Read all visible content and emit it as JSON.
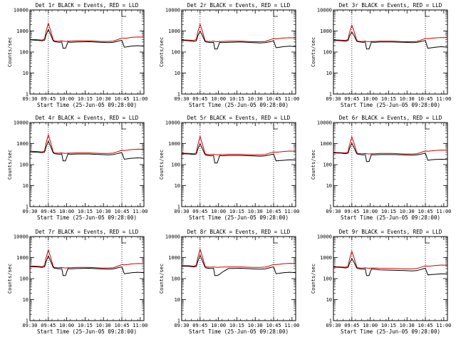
{
  "figure": {
    "colors": {
      "events": "#000000",
      "lld": "#d40000",
      "axis": "#000000",
      "background": "#ffffff"
    }
  },
  "chart_data": [
    {
      "type": "line",
      "title": "Det 1r BLACK = Events, RED = LLD",
      "xlabel": "Start Time (25-Jun-05 09:28:00)",
      "ylabel": "Counts/sec",
      "x_ticks": [
        "09:30",
        "09:45",
        "10:00",
        "10:15",
        "10:30",
        "10:45",
        "11:00"
      ],
      "y_ticks": [
        "1",
        "10",
        "100",
        "1000",
        "10000"
      ],
      "xlim": [
        2,
        95
      ],
      "ylim": [
        1,
        10000
      ],
      "yscale": "log",
      "vlines": [
        17,
        77
      ],
      "x": [
        2,
        8,
        12,
        14,
        15,
        17,
        19,
        21,
        22,
        24,
        26,
        28,
        29,
        31,
        33,
        35,
        40,
        50,
        60,
        66,
        70,
        73,
        75,
        77,
        79,
        82,
        85,
        90,
        95
      ],
      "series": [
        {
          "name": "Events",
          "color": "#000000",
          "values": [
            380,
            360,
            340,
            360,
            600,
            1200,
            650,
            340,
            310,
            300,
            290,
            300,
            150,
            150,
            300,
            290,
            300,
            310,
            290,
            280,
            290,
            320,
            340,
            360,
            170,
            180,
            190,
            200,
            190
          ]
        },
        {
          "name": "LLD",
          "color": "#d40000",
          "values": [
            400,
            390,
            370,
            420,
            900,
            2300,
            1000,
            380,
            340,
            330,
            330,
            340,
            330,
            320,
            330,
            330,
            340,
            340,
            320,
            320,
            330,
            380,
            420,
            460,
            450,
            470,
            500,
            520,
            510
          ]
        }
      ]
    },
    {
      "type": "line",
      "title": "Det 2r BLACK = Events, RED = LLD",
      "xlabel": "Start Time (25-Jun-05 09:28:00)",
      "ylabel": "Counts/sec",
      "x_ticks": [
        "09:30",
        "09:45",
        "10:00",
        "10:15",
        "10:30",
        "10:45",
        "11:00"
      ],
      "y_ticks": [
        "1",
        "10",
        "100",
        "1000",
        "10000"
      ],
      "xlim": [
        2,
        95
      ],
      "ylim": [
        1,
        10000
      ],
      "yscale": "log",
      "vlines": [
        17,
        77
      ],
      "x": [
        2,
        8,
        12,
        14,
        15,
        17,
        19,
        21,
        22,
        24,
        26,
        28,
        29,
        31,
        33,
        35,
        40,
        50,
        60,
        66,
        70,
        73,
        75,
        77,
        79,
        82,
        85,
        90,
        95
      ],
      "series": [
        {
          "name": "Events",
          "color": "#000000",
          "values": [
            360,
            340,
            320,
            340,
            560,
            1000,
            600,
            320,
            300,
            290,
            280,
            290,
            140,
            140,
            290,
            280,
            290,
            300,
            280,
            270,
            280,
            300,
            320,
            340,
            160,
            170,
            180,
            190,
            180
          ]
        },
        {
          "name": "LLD",
          "color": "#d40000",
          "values": [
            380,
            370,
            360,
            400,
            850,
            2100,
            950,
            360,
            330,
            320,
            320,
            330,
            320,
            310,
            320,
            320,
            330,
            330,
            310,
            310,
            320,
            360,
            400,
            430,
            420,
            440,
            460,
            480,
            470
          ]
        }
      ]
    },
    {
      "type": "line",
      "title": "Det 3r BLACK = Events, RED = LLD",
      "xlabel": "Start Time (25-Jun-05 09:28:00)",
      "ylabel": "Counts/sec",
      "x_ticks": [
        "09:30",
        "09:45",
        "10:00",
        "10:15",
        "10:30",
        "10:45",
        "11:00"
      ],
      "y_ticks": [
        "1",
        "10",
        "100",
        "1000",
        "10000"
      ],
      "xlim": [
        2,
        95
      ],
      "ylim": [
        1,
        10000
      ],
      "yscale": "log",
      "vlines": [
        17,
        77
      ],
      "x": [
        2,
        8,
        12,
        14,
        15,
        17,
        19,
        21,
        22,
        24,
        26,
        28,
        29,
        31,
        33,
        35,
        40,
        50,
        60,
        66,
        70,
        73,
        75,
        77,
        79,
        82,
        85,
        90,
        95
      ],
      "series": [
        {
          "name": "Events",
          "color": "#000000",
          "values": [
            360,
            340,
            330,
            350,
            560,
            900,
            580,
            330,
            310,
            300,
            290,
            300,
            140,
            140,
            300,
            290,
            300,
            300,
            290,
            280,
            290,
            310,
            330,
            350,
            150,
            160,
            170,
            180,
            170
          ]
        },
        {
          "name": "LLD",
          "color": "#d40000",
          "values": [
            380,
            370,
            360,
            400,
            800,
            1900,
            900,
            360,
            330,
            320,
            320,
            330,
            320,
            310,
            320,
            320,
            330,
            330,
            310,
            310,
            320,
            360,
            400,
            440,
            430,
            450,
            470,
            490,
            480
          ]
        }
      ]
    },
    {
      "type": "line",
      "title": "Det 4r BLACK = Events, RED = LLD",
      "xlabel": "Start Time (25-Jun-05 09:28:00)",
      "ylabel": "Counts/sec",
      "x_ticks": [
        "09:30",
        "09:45",
        "10:00",
        "10:15",
        "10:30",
        "10:45",
        "11:00"
      ],
      "y_ticks": [
        "1",
        "10",
        "100",
        "1000",
        "10000"
      ],
      "xlim": [
        2,
        95
      ],
      "ylim": [
        1,
        10000
      ],
      "yscale": "log",
      "vlines": [
        17,
        77
      ],
      "x": [
        2,
        8,
        12,
        14,
        15,
        17,
        19,
        21,
        22,
        24,
        26,
        28,
        29,
        31,
        33,
        35,
        40,
        50,
        60,
        66,
        70,
        73,
        75,
        77,
        79,
        82,
        85,
        90,
        95
      ],
      "series": [
        {
          "name": "Events",
          "color": "#000000",
          "values": [
            400,
            390,
            370,
            390,
            650,
            1300,
            700,
            360,
            330,
            320,
            310,
            320,
            150,
            150,
            320,
            310,
            320,
            320,
            300,
            290,
            300,
            330,
            350,
            370,
            180,
            190,
            200,
            210,
            200
          ]
        },
        {
          "name": "LLD",
          "color": "#d40000",
          "values": [
            430,
            420,
            400,
            450,
            1000,
            2600,
            1100,
            400,
            360,
            350,
            350,
            360,
            350,
            340,
            350,
            350,
            360,
            360,
            340,
            340,
            350,
            400,
            440,
            480,
            470,
            490,
            520,
            540,
            530
          ]
        }
      ]
    },
    {
      "type": "line",
      "title": "Det 5r BLACK = Events, RED = LLD",
      "xlabel": "Start Time (25-Jun-05 09:28:00)",
      "ylabel": "Counts/sec",
      "x_ticks": [
        "09:30",
        "09:45",
        "10:00",
        "10:15",
        "10:30",
        "10:45",
        "11:00"
      ],
      "y_ticks": [
        "1",
        "10",
        "100",
        "1000",
        "10000"
      ],
      "xlim": [
        2,
        95
      ],
      "ylim": [
        1,
        10000
      ],
      "yscale": "log",
      "vlines": [
        17,
        77
      ],
      "x": [
        2,
        8,
        12,
        14,
        15,
        17,
        19,
        21,
        22,
        24,
        26,
        28,
        29,
        31,
        33,
        35,
        40,
        50,
        60,
        66,
        70,
        73,
        75,
        77,
        79,
        82,
        85,
        90,
        95
      ],
      "series": [
        {
          "name": "Events",
          "color": "#000000",
          "values": [
            330,
            320,
            300,
            320,
            520,
            1000,
            560,
            300,
            280,
            270,
            260,
            270,
            120,
            120,
            270,
            260,
            270,
            270,
            260,
            250,
            260,
            280,
            300,
            320,
            150,
            155,
            160,
            170,
            165
          ]
        },
        {
          "name": "LLD",
          "color": "#d40000",
          "values": [
            350,
            340,
            330,
            370,
            800,
            2200,
            900,
            340,
            310,
            300,
            300,
            310,
            300,
            290,
            300,
            300,
            310,
            310,
            290,
            290,
            300,
            340,
            370,
            400,
            390,
            400,
            420,
            440,
            430
          ]
        }
      ]
    },
    {
      "type": "line",
      "title": "Det 6r BLACK = Events, RED = LLD",
      "xlabel": "Start Time (25-Jun-05 09:28:00)",
      "ylabel": "Counts/sec",
      "x_ticks": [
        "09:30",
        "09:45",
        "10:00",
        "10:15",
        "10:30",
        "10:45",
        "11:00"
      ],
      "y_ticks": [
        "1",
        "10",
        "100",
        "1000",
        "10000"
      ],
      "xlim": [
        2,
        95
      ],
      "ylim": [
        1,
        10000
      ],
      "yscale": "log",
      "vlines": [
        17,
        77
      ],
      "x": [
        2,
        8,
        12,
        14,
        15,
        17,
        19,
        21,
        22,
        24,
        26,
        28,
        29,
        31,
        33,
        35,
        40,
        50,
        60,
        66,
        70,
        73,
        75,
        77,
        79,
        82,
        85,
        90,
        95
      ],
      "series": [
        {
          "name": "Events",
          "color": "#000000",
          "values": [
            360,
            350,
            330,
            350,
            560,
            1050,
            600,
            330,
            310,
            300,
            290,
            300,
            140,
            140,
            300,
            290,
            300,
            300,
            290,
            280,
            290,
            310,
            330,
            350,
            160,
            170,
            175,
            180,
            175
          ]
        },
        {
          "name": "LLD",
          "color": "#d40000",
          "values": [
            380,
            370,
            360,
            400,
            850,
            2100,
            950,
            370,
            340,
            330,
            330,
            340,
            330,
            320,
            330,
            330,
            340,
            340,
            320,
            320,
            330,
            370,
            410,
            440,
            430,
            450,
            470,
            490,
            480
          ]
        }
      ]
    },
    {
      "type": "line",
      "title": "Det 7r BLACK = Events, RED = LLD",
      "xlabel": "Start Time (25-Jun-05 09:28:00)",
      "ylabel": "Counts/sec",
      "x_ticks": [
        "09:30",
        "09:45",
        "10:00",
        "10:15",
        "10:30",
        "10:45",
        "11:00"
      ],
      "y_ticks": [
        "1",
        "10",
        "100",
        "1000",
        "10000"
      ],
      "xlim": [
        2,
        95
      ],
      "ylim": [
        1,
        10000
      ],
      "yscale": "log",
      "vlines": [
        17,
        77
      ],
      "x": [
        2,
        8,
        12,
        14,
        15,
        17,
        19,
        21,
        22,
        24,
        26,
        28,
        29,
        31,
        33,
        35,
        40,
        50,
        60,
        66,
        70,
        73,
        75,
        77,
        79,
        82,
        85,
        90,
        95
      ],
      "series": [
        {
          "name": "Events",
          "color": "#000000",
          "values": [
            370,
            360,
            340,
            360,
            600,
            1200,
            650,
            340,
            310,
            300,
            290,
            300,
            140,
            140,
            300,
            290,
            300,
            310,
            290,
            280,
            290,
            320,
            340,
            360,
            170,
            180,
            190,
            200,
            190
          ]
        },
        {
          "name": "LLD",
          "color": "#d40000",
          "values": [
            400,
            390,
            370,
            420,
            900,
            2300,
            1000,
            380,
            340,
            330,
            330,
            340,
            330,
            320,
            330,
            330,
            340,
            340,
            320,
            320,
            330,
            380,
            420,
            460,
            450,
            470,
            500,
            520,
            510
          ]
        }
      ]
    },
    {
      "type": "line",
      "title": "Det 8r BLACK = Events, RED = LLD",
      "xlabel": "Start Time (25-Jun-05 09:28:00)",
      "ylabel": "Counts/sec",
      "x_ticks": [
        "09:30",
        "09:45",
        "10:00",
        "10:15",
        "10:30",
        "10:45",
        "11:00"
      ],
      "y_ticks": [
        "1",
        "10",
        "100",
        "1000",
        "10000"
      ],
      "xlim": [
        2,
        95
      ],
      "ylim": [
        1,
        10000
      ],
      "yscale": "log",
      "vlines": [
        17,
        77
      ],
      "x": [
        2,
        8,
        12,
        14,
        15,
        17,
        19,
        21,
        22,
        24,
        26,
        28,
        29,
        31,
        33,
        35,
        40,
        50,
        60,
        66,
        70,
        73,
        75,
        77,
        79,
        82,
        85,
        90,
        95
      ],
      "series": [
        {
          "name": "Events",
          "color": "#000000",
          "values": [
            390,
            380,
            360,
            380,
            620,
            1300,
            680,
            350,
            320,
            310,
            300,
            310,
            140,
            140,
            160,
            200,
            300,
            310,
            290,
            280,
            290,
            320,
            340,
            360,
            170,
            180,
            190,
            200,
            190
          ]
        },
        {
          "name": "LLD",
          "color": "#d40000",
          "values": [
            420,
            410,
            390,
            440,
            950,
            2500,
            1050,
            400,
            360,
            350,
            350,
            360,
            350,
            340,
            350,
            350,
            360,
            360,
            340,
            340,
            350,
            390,
            430,
            470,
            460,
            480,
            510,
            530,
            520
          ]
        }
      ]
    },
    {
      "type": "line",
      "title": "Det 9r BLACK = Events, RED = LLD",
      "xlabel": "Start Time (25-Jun-05 09:28:00)",
      "ylabel": "Counts/sec",
      "x_ticks": [
        "09:30",
        "09:45",
        "10:00",
        "10:15",
        "10:30",
        "10:45",
        "11:00"
      ],
      "y_ticks": [
        "1",
        "10",
        "100",
        "1000",
        "10000"
      ],
      "xlim": [
        2,
        95
      ],
      "ylim": [
        1,
        10000
      ],
      "yscale": "log",
      "vlines": [
        17,
        77
      ],
      "x": [
        2,
        8,
        12,
        14,
        15,
        17,
        19,
        21,
        22,
        24,
        26,
        28,
        29,
        31,
        33,
        35,
        40,
        50,
        60,
        66,
        70,
        73,
        75,
        77,
        79,
        82,
        85,
        90,
        95
      ],
      "series": [
        {
          "name": "Events",
          "color": "#000000",
          "values": [
            350,
            340,
            320,
            340,
            520,
            900,
            560,
            320,
            300,
            290,
            280,
            290,
            140,
            140,
            290,
            280,
            260,
            250,
            240,
            230,
            240,
            270,
            290,
            310,
            150,
            155,
            160,
            170,
            165
          ]
        },
        {
          "name": "LLD",
          "color": "#d40000",
          "values": [
            370,
            360,
            350,
            390,
            800,
            2000,
            900,
            360,
            330,
            320,
            320,
            330,
            320,
            310,
            320,
            320,
            310,
            300,
            290,
            290,
            300,
            340,
            370,
            400,
            390,
            400,
            420,
            440,
            430
          ]
        }
      ]
    }
  ]
}
